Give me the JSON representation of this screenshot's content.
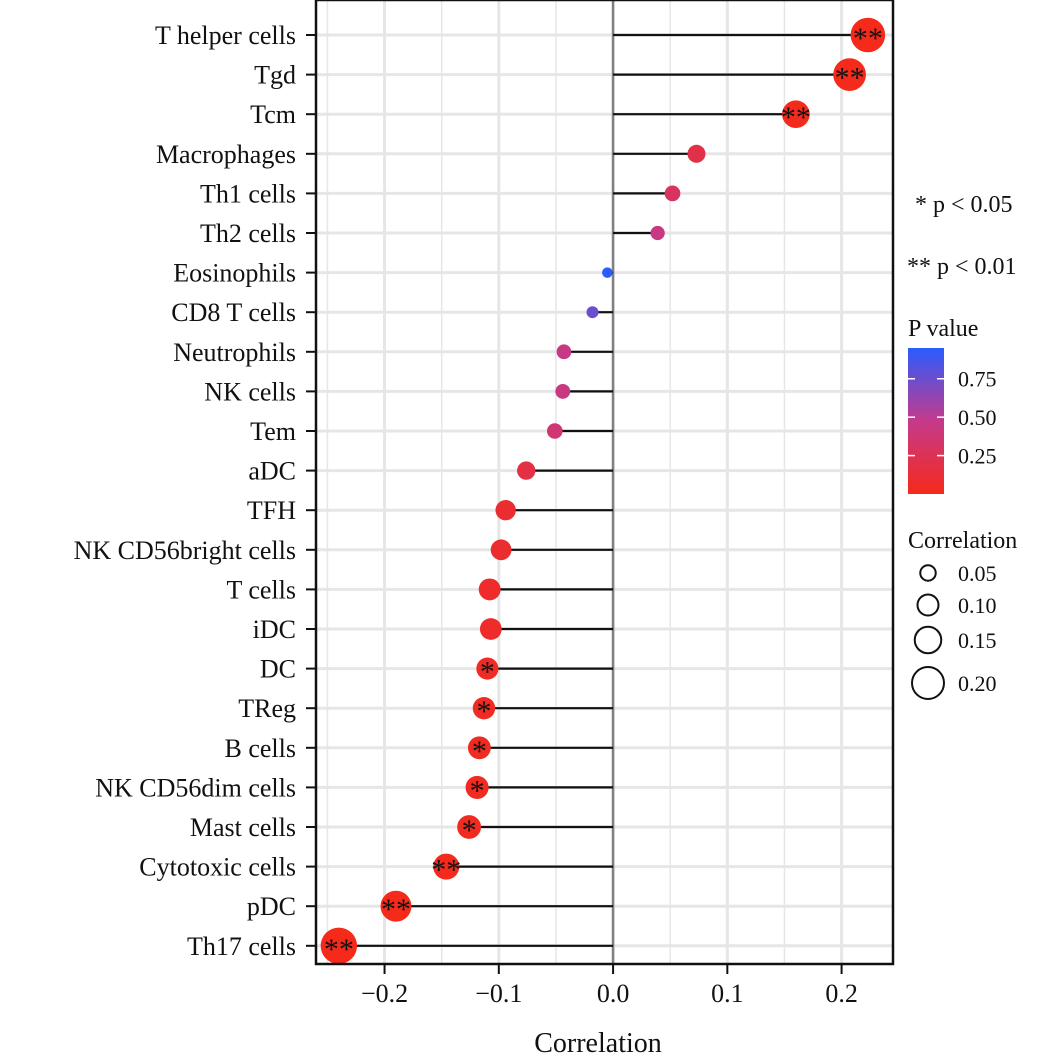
{
  "chart_data": {
    "type": "scatter",
    "subtype": "lollipop",
    "title": "",
    "xlabel": "Correlation",
    "ylabel": "",
    "xlim": [
      -0.26,
      0.245
    ],
    "x_ticks": [
      -0.2,
      -0.1,
      0.0,
      0.1,
      0.2
    ],
    "x_tick_labels": [
      "−0.2",
      "−0.1",
      "0.0",
      "0.1",
      "0.2"
    ],
    "grid": true,
    "zero_line": true,
    "points": [
      {
        "label": "T helper cells",
        "correlation": 0.223,
        "p_value": 0.002,
        "signif": "**"
      },
      {
        "label": "Tgd",
        "correlation": 0.207,
        "p_value": 0.003,
        "signif": "**"
      },
      {
        "label": "Tcm",
        "correlation": 0.16,
        "p_value": 0.008,
        "signif": "**"
      },
      {
        "label": "Macrophages",
        "correlation": 0.073,
        "p_value": 0.2,
        "signif": ""
      },
      {
        "label": "Th1 cells",
        "correlation": 0.052,
        "p_value": 0.3,
        "signif": ""
      },
      {
        "label": "Th2 cells",
        "correlation": 0.039,
        "p_value": 0.45,
        "signif": ""
      },
      {
        "label": "Eosinophils",
        "correlation": -0.005,
        "p_value": 0.95,
        "signif": ""
      },
      {
        "label": "CD8 T cells",
        "correlation": -0.018,
        "p_value": 0.75,
        "signif": ""
      },
      {
        "label": "Neutrophils",
        "correlation": -0.043,
        "p_value": 0.45,
        "signif": ""
      },
      {
        "label": "NK cells",
        "correlation": -0.044,
        "p_value": 0.44,
        "signif": ""
      },
      {
        "label": "Tem",
        "correlation": -0.051,
        "p_value": 0.38,
        "signif": ""
      },
      {
        "label": "aDC",
        "correlation": -0.076,
        "p_value": 0.18,
        "signif": ""
      },
      {
        "label": "TFH",
        "correlation": -0.094,
        "p_value": 0.1,
        "signif": ""
      },
      {
        "label": "NK CD56bright cells",
        "correlation": -0.098,
        "p_value": 0.09,
        "signif": ""
      },
      {
        "label": "T cells",
        "correlation": -0.108,
        "p_value": 0.07,
        "signif": ""
      },
      {
        "label": "iDC",
        "correlation": -0.107,
        "p_value": 0.07,
        "signif": ""
      },
      {
        "label": "DC",
        "correlation": -0.11,
        "p_value": 0.04,
        "signif": "*"
      },
      {
        "label": "TReg",
        "correlation": -0.113,
        "p_value": 0.04,
        "signif": "*"
      },
      {
        "label": "B cells",
        "correlation": -0.117,
        "p_value": 0.035,
        "signif": "*"
      },
      {
        "label": "NK CD56dim cells",
        "correlation": -0.119,
        "p_value": 0.035,
        "signif": "*"
      },
      {
        "label": "Mast cells",
        "correlation": -0.126,
        "p_value": 0.03,
        "signif": "*"
      },
      {
        "label": "Cytotoxic cells",
        "correlation": -0.146,
        "p_value": 0.008,
        "signif": "**"
      },
      {
        "label": "pDC",
        "correlation": -0.19,
        "p_value": 0.002,
        "signif": "**"
      },
      {
        "label": "Th17 cells",
        "correlation": -0.24,
        "p_value": 0.0005,
        "signif": "**"
      }
    ],
    "legend": {
      "placement": "right",
      "notes": [
        "* p < 0.05",
        "** p < 0.01"
      ],
      "color_title": "P value",
      "color_ticks": [
        0.75,
        0.5,
        0.25
      ],
      "color_tick_labels": [
        "0.75",
        "0.50",
        "0.25"
      ],
      "color_range": [
        0.0,
        0.95
      ],
      "color_low": "#f52a1a",
      "color_mid": "#c53a8a",
      "color_high": "#2a5cff",
      "size_title": "Correlation",
      "size_values": [
        0.05,
        0.1,
        0.15,
        0.2
      ],
      "size_labels": [
        "0.05",
        "0.10",
        "0.15",
        "0.20"
      ]
    },
    "colors": {
      "grid": "#e6e6e6",
      "zero_line": "#808080",
      "stem": "#111111",
      "panel_border": "#111111"
    }
  }
}
